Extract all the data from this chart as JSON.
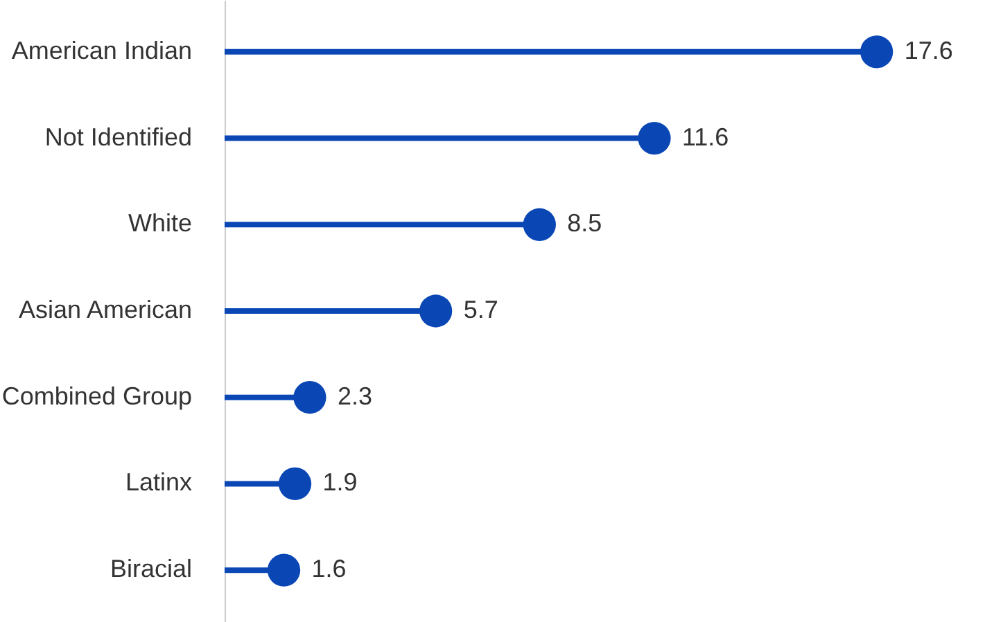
{
  "chart_data": {
    "type": "lollipop",
    "orientation": "horizontal",
    "data_labels": true,
    "categories": [
      "American Indian",
      "Not Identified",
      "White",
      "Asian American",
      "Combined Group",
      "Latinx",
      "Biracial"
    ],
    "values": [
      17.6,
      11.6,
      8.5,
      5.7,
      2.3,
      1.9,
      1.6
    ],
    "color": "#0a47b5",
    "tick_labels": "y"
  }
}
